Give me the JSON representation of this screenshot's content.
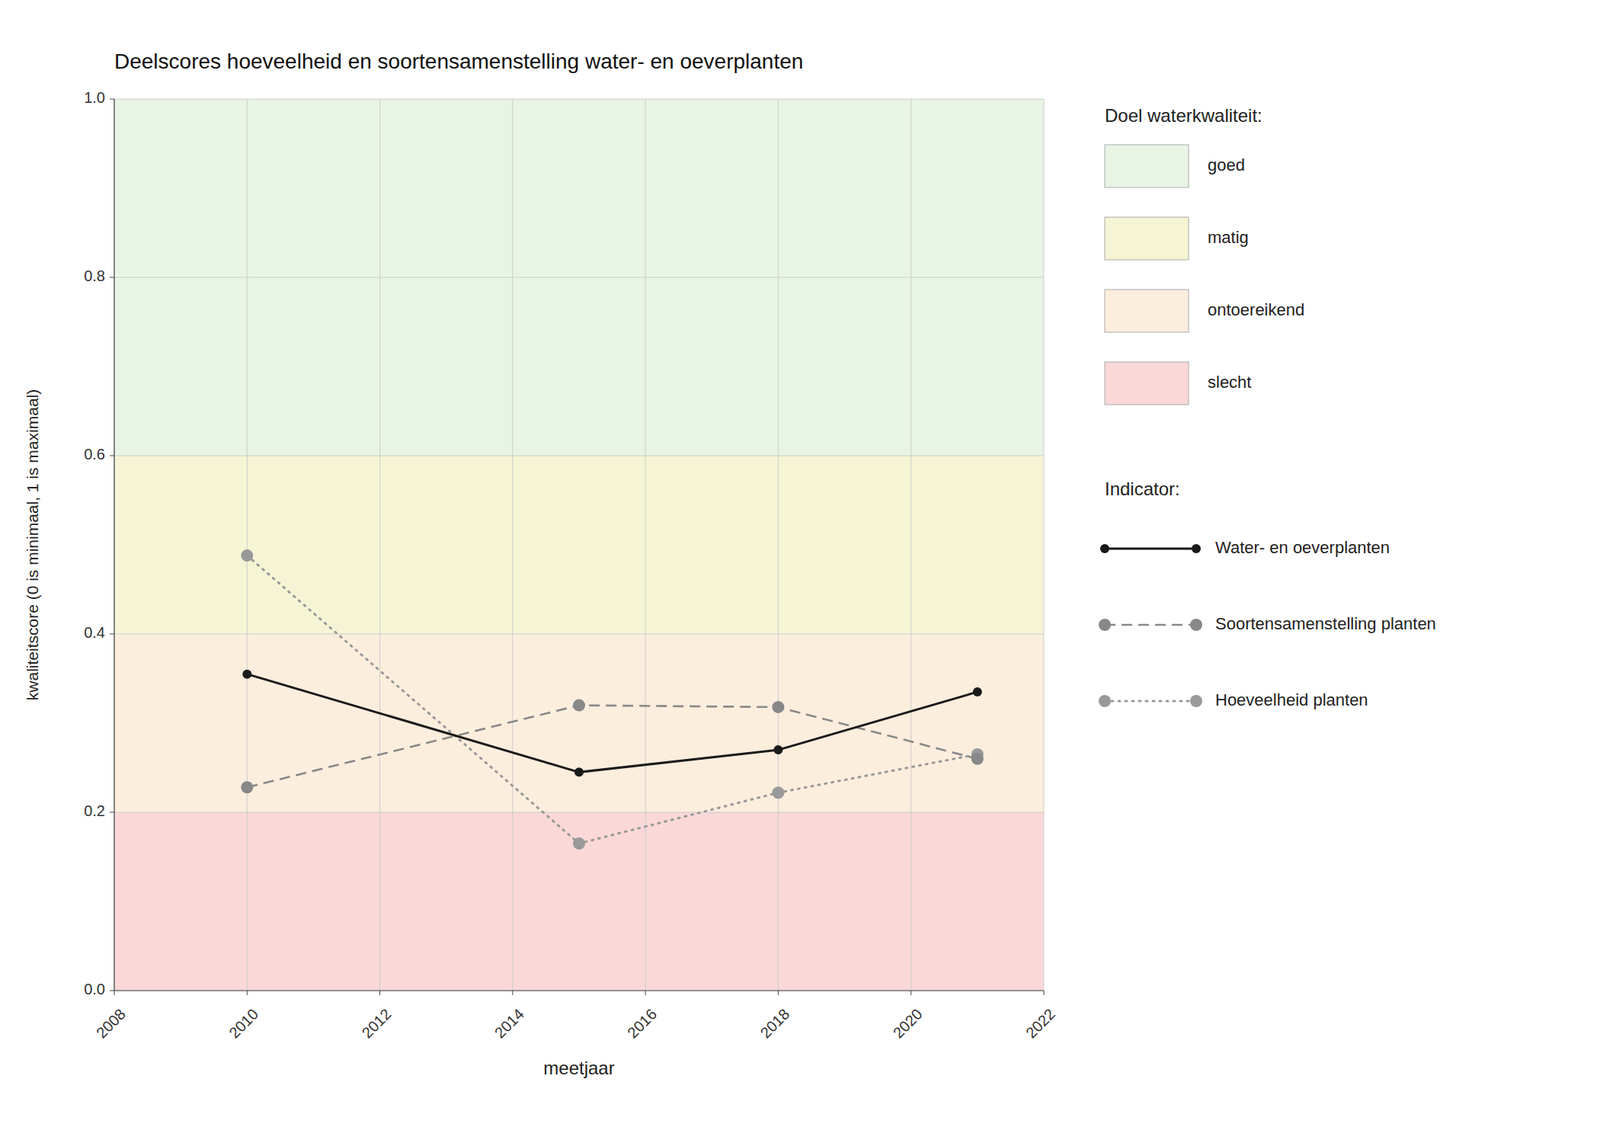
{
  "chart_data": {
    "type": "line",
    "title": "Deelscores hoeveelheid en soortensamenstelling water- en oeverplanten",
    "x_label": "meetjaar",
    "y_label": "kwaliteitscore (0 is minimaal, 1 is maximaal)",
    "xlim": [
      2008,
      2022
    ],
    "ylim": [
      0.0,
      1.0
    ],
    "xticks": [
      2008,
      2010,
      2012,
      2014,
      2016,
      2018,
      2020,
      2022
    ],
    "yticks": [
      {
        "value": 0.0,
        "label": "0.0"
      },
      0.2,
      0.4,
      0.6,
      0.8,
      {
        "value": 1.0,
        "label": "1.0"
      }
    ],
    "grid": true,
    "legend": "right",
    "x": [
      2010,
      2015,
      2018,
      2021
    ],
    "series": [
      {
        "name": "Water- en oeverplanten",
        "color": "#1a1a1a",
        "line_style": "solid",
        "marker": "circle",
        "values": [
          0.355,
          0.245,
          0.27,
          0.335
        ]
      },
      {
        "name": "Soortensamenstelling planten",
        "color": "#888888",
        "line_style": "dashed",
        "marker": "circle",
        "values": [
          0.228,
          0.32,
          0.318,
          0.26
        ]
      },
      {
        "name": "Hoeveelheid planten",
        "color": "#999999",
        "line_style": "dotted",
        "marker": "circle",
        "values": [
          0.488,
          0.165,
          0.222,
          0.265
        ]
      }
    ],
    "zones_title": "Doel waterkwaliteit:",
    "series_title": "Indicator:",
    "zones": [
      {
        "name": "goed",
        "ymin": 0.6,
        "ymax": 1.0,
        "color": "#e8f5e5"
      },
      {
        "name": "matig",
        "ymin": 0.4,
        "ymax": 0.6,
        "color": "#f5f5d5"
      },
      {
        "name": "ontoereikend",
        "ymin": 0.2,
        "ymax": 0.4,
        "color": "#fceedd"
      },
      {
        "name": "slecht",
        "ymin": 0.0,
        "ymax": 0.2,
        "color": "#fad8d8"
      }
    ]
  }
}
